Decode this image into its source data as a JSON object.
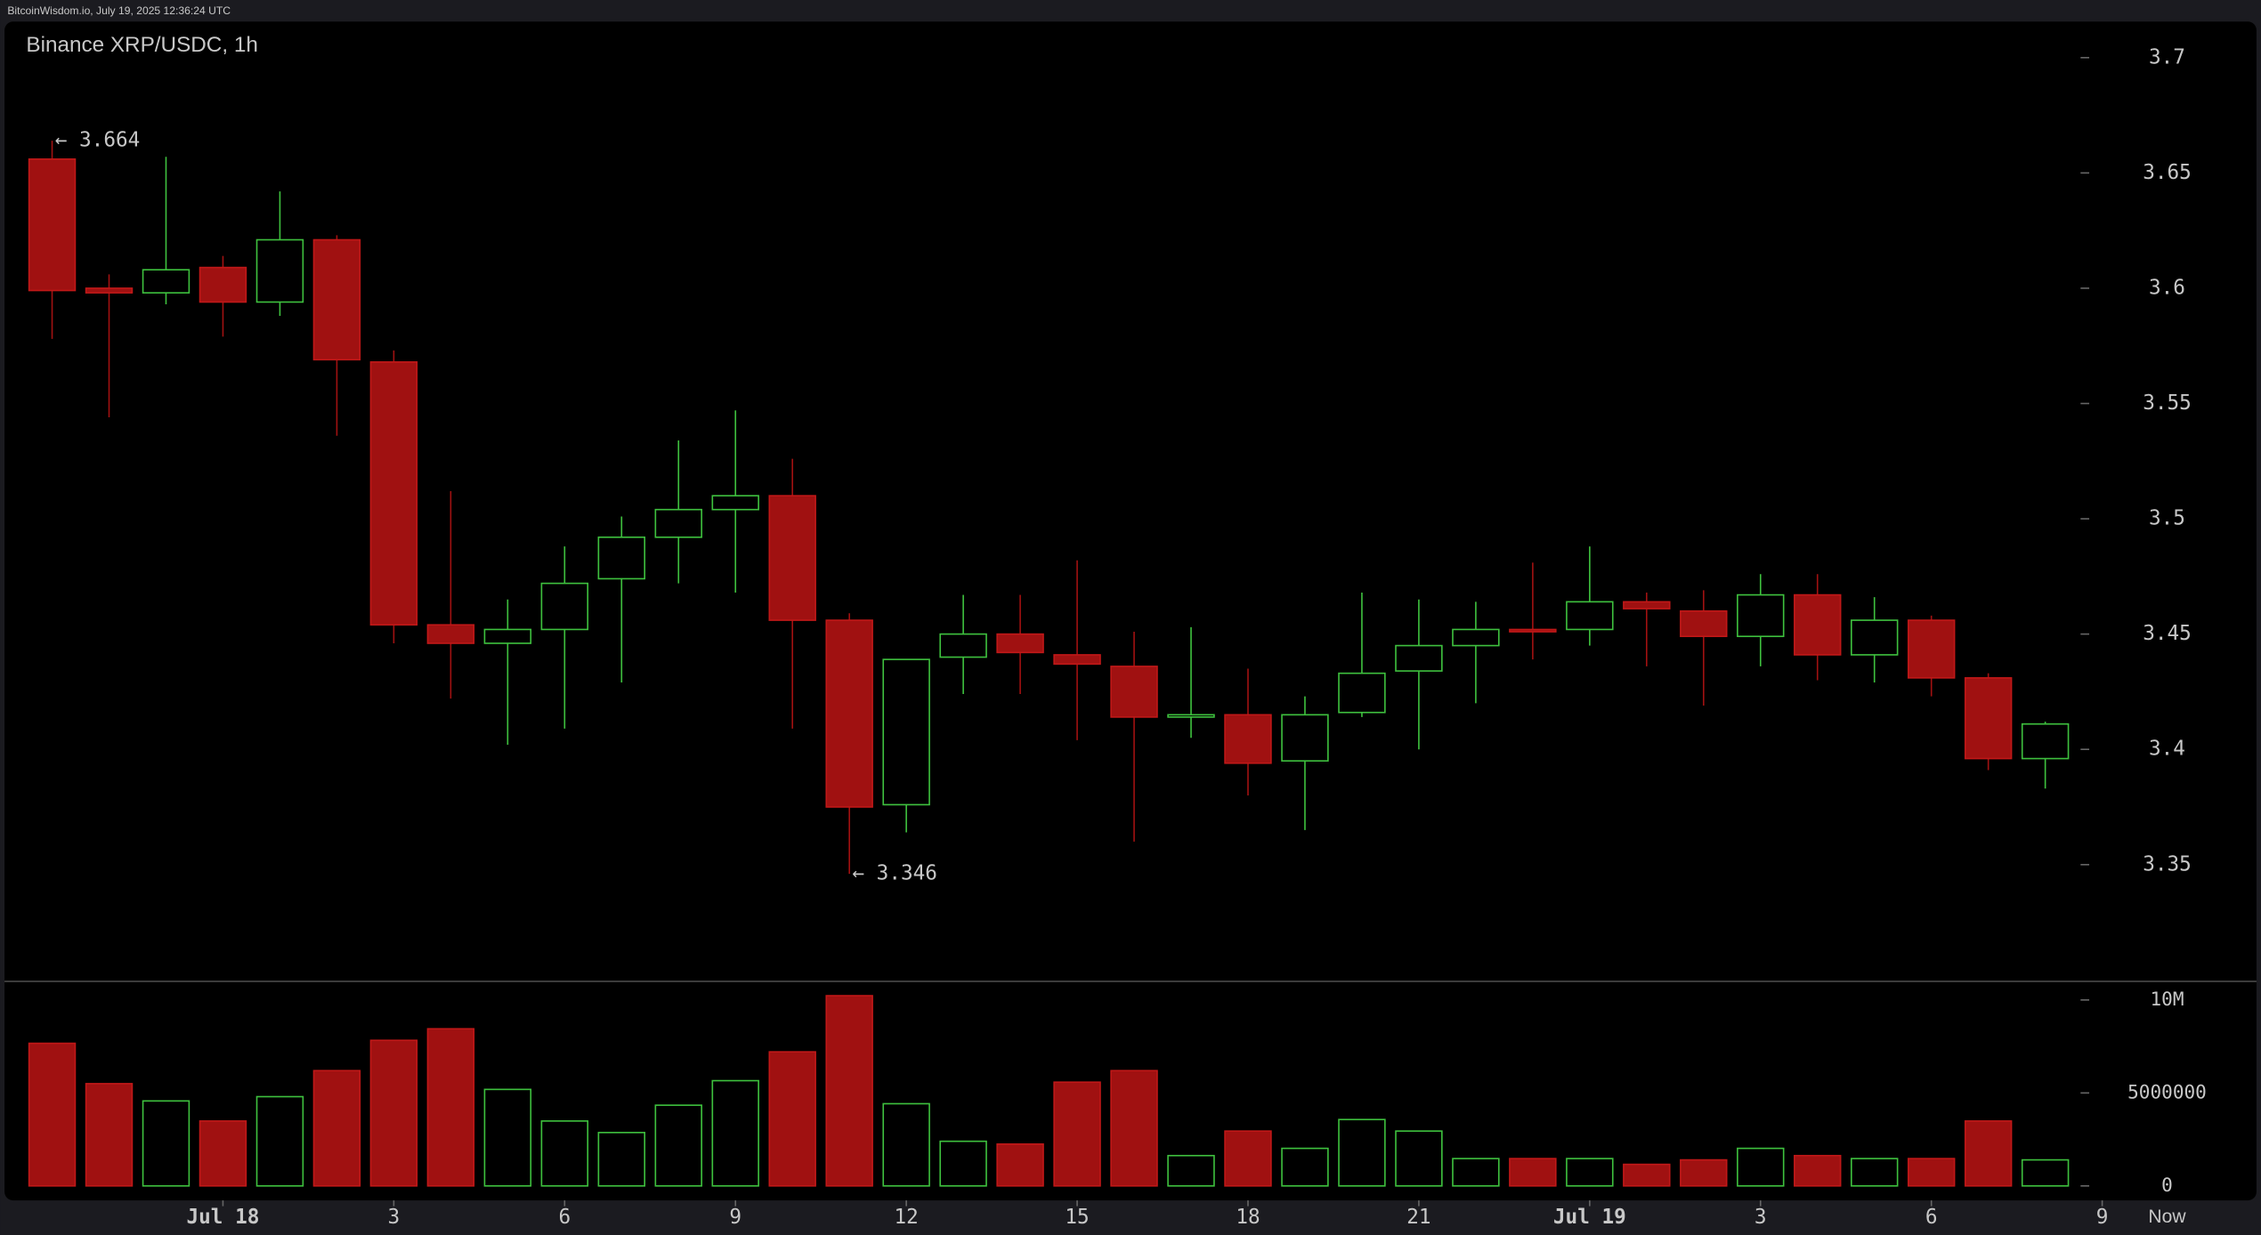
{
  "header": "BitcoinWisdom.io, July 19, 2025 12:36:24 UTC",
  "chart_data": {
    "type": "candlestick",
    "title": "Binance XRP/USDC, 1h",
    "up_color": "#3ec03e",
    "down_color": "#a01111",
    "open": [
      3.656,
      3.6,
      3.598,
      3.609,
      3.594,
      3.621,
      3.568,
      3.454,
      3.446,
      3.452,
      3.474,
      3.492,
      3.504,
      3.51,
      3.456,
      3.376,
      3.44,
      3.45,
      3.441,
      3.436,
      3.414,
      3.415,
      3.395,
      3.416,
      3.434,
      3.445,
      3.452,
      3.452,
      3.464,
      3.46,
      3.449,
      3.467,
      3.441,
      3.456,
      3.431,
      3.396
    ],
    "high": [
      3.664,
      3.606,
      3.657,
      3.614,
      3.642,
      3.623,
      3.573,
      3.512,
      3.465,
      3.488,
      3.501,
      3.534,
      3.547,
      3.526,
      3.459,
      3.439,
      3.467,
      3.467,
      3.482,
      3.451,
      3.453,
      3.435,
      3.423,
      3.468,
      3.465,
      3.464,
      3.481,
      3.488,
      3.468,
      3.469,
      3.476,
      3.476,
      3.466,
      3.458,
      3.433,
      3.412
    ],
    "low": [
      3.578,
      3.544,
      3.593,
      3.579,
      3.588,
      3.536,
      3.446,
      3.422,
      3.402,
      3.409,
      3.429,
      3.472,
      3.468,
      3.409,
      3.346,
      3.364,
      3.424,
      3.424,
      3.404,
      3.36,
      3.405,
      3.38,
      3.365,
      3.414,
      3.4,
      3.42,
      3.439,
      3.445,
      3.436,
      3.419,
      3.436,
      3.43,
      3.429,
      3.423,
      3.391,
      3.383
    ],
    "close": [
      3.599,
      3.598,
      3.608,
      3.594,
      3.621,
      3.569,
      3.454,
      3.446,
      3.452,
      3.472,
      3.492,
      3.504,
      3.51,
      3.456,
      3.375,
      3.439,
      3.45,
      3.442,
      3.437,
      3.414,
      3.415,
      3.394,
      3.415,
      3.433,
      3.445,
      3.452,
      3.451,
      3.464,
      3.461,
      3.449,
      3.467,
      3.441,
      3.456,
      3.431,
      3.396,
      3.411
    ],
    "volume": [
      7670000,
      5500000,
      4570000,
      3490000,
      4800000,
      6200000,
      7830000,
      8450000,
      5190000,
      3490000,
      2870000,
      4340000,
      5660000,
      7210000,
      10230000,
      4420000,
      2400000,
      2250000,
      5580000,
      6200000,
      1630000,
      2950000,
      2020000,
      3570000,
      2950000,
      1470000,
      1470000,
      1470000,
      1160000,
      1400000,
      2020000,
      1630000,
      1470000,
      1470000,
      3490000,
      1400000
    ],
    "ylim": [
      3.3,
      3.715625
    ],
    "yticks": [
      3.35,
      3.4,
      3.45,
      3.5,
      3.55,
      3.6,
      3.65,
      3.7
    ],
    "volume_ylim": [
      -780000,
      11000000
    ],
    "volume_ticks": [
      0,
      5000000,
      {
        "value": 10000000,
        "label": "10M"
      }
    ],
    "xticks": [
      {
        "value": 3,
        "label": "Jul 18"
      },
      {
        "value": 6,
        "label": "3"
      },
      {
        "value": 9,
        "label": "6"
      },
      {
        "value": 12,
        "label": "9"
      },
      {
        "value": 15,
        "label": "12"
      },
      {
        "value": 18,
        "label": "15"
      },
      {
        "value": 21,
        "label": "18"
      },
      {
        "value": 24,
        "label": "21"
      },
      {
        "value": 27,
        "label": "Jul 19"
      },
      {
        "value": 30,
        "label": "3"
      },
      {
        "value": 33,
        "label": "6"
      },
      {
        "value": 36,
        "label": "9"
      }
    ],
    "now_label": "Now",
    "annotations": [
      {
        "text": "← 3.664",
        "value": 3.664,
        "index": 0
      },
      {
        "text": "← 3.346",
        "value": 3.346,
        "index": 14
      }
    ]
  }
}
